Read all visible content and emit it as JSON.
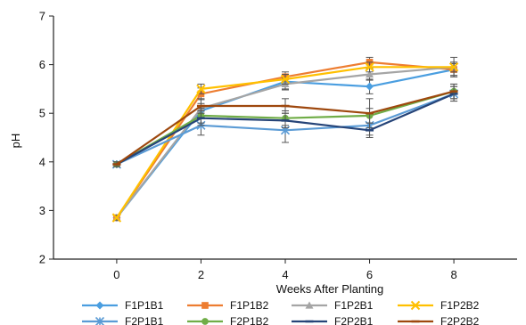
{
  "chart_data": {
    "type": "line",
    "title": "",
    "xlabel": "Weeks After Planting",
    "ylabel": "pH",
    "x": [
      0,
      2,
      4,
      6,
      8
    ],
    "xticks": [
      "0",
      "2",
      "4",
      "6",
      "8"
    ],
    "yticks": [
      "2",
      "3",
      "4",
      "5",
      "6",
      "7"
    ],
    "xlim": [
      -1.5,
      9.5
    ],
    "ylim": [
      2,
      7
    ],
    "grid": false,
    "legend_position": "bottom",
    "series": [
      {
        "name": "F1P1B1",
        "color": "#4a9ee0",
        "marker": "diamond",
        "values": [
          2.85,
          5.05,
          5.65,
          5.55,
          5.9
        ],
        "errors": [
          0.05,
          0.1,
          0.15,
          0.15,
          0.12
        ]
      },
      {
        "name": "F1P1B2",
        "color": "#ed7d31",
        "marker": "square",
        "values": [
          2.85,
          5.4,
          5.75,
          6.05,
          5.9
        ],
        "errors": [
          0.05,
          0.12,
          0.1,
          0.1,
          0.15
        ]
      },
      {
        "name": "F1P2B1",
        "color": "#a5a5a5",
        "marker": "triangle",
        "values": [
          2.85,
          5.1,
          5.6,
          5.8,
          5.95
        ],
        "errors": [
          0.05,
          0.1,
          0.12,
          0.12,
          0.2
        ]
      },
      {
        "name": "F1P2B2",
        "color": "#ffc000",
        "marker": "x",
        "values": [
          2.85,
          5.5,
          5.7,
          5.95,
          5.95
        ],
        "errors": [
          0.05,
          0.1,
          0.1,
          0.1,
          0.1
        ]
      },
      {
        "name": "F2P1B1",
        "color": "#5b9bd5",
        "marker": "star",
        "values": [
          3.95,
          4.75,
          4.65,
          4.75,
          5.4
        ],
        "errors": [
          0.05,
          0.2,
          0.25,
          0.2,
          0.15
        ]
      },
      {
        "name": "F2P1B2",
        "color": "#70ad47",
        "marker": "circle",
        "values": [
          3.95,
          4.95,
          4.9,
          4.95,
          5.45
        ],
        "errors": [
          0.05,
          0.15,
          0.15,
          0.15,
          0.15
        ]
      },
      {
        "name": "F2P2B1",
        "color": "#264478",
        "marker": "dash",
        "values": [
          3.95,
          4.9,
          4.85,
          4.65,
          5.4
        ],
        "errors": [
          0.05,
          0.15,
          0.15,
          0.15,
          0.15
        ]
      },
      {
        "name": "F2P2B2",
        "color": "#9e480e",
        "marker": "dash",
        "values": [
          3.95,
          5.15,
          5.15,
          5.0,
          5.45
        ],
        "errors": [
          0.05,
          0.15,
          0.15,
          0.3,
          0.15
        ]
      }
    ]
  }
}
